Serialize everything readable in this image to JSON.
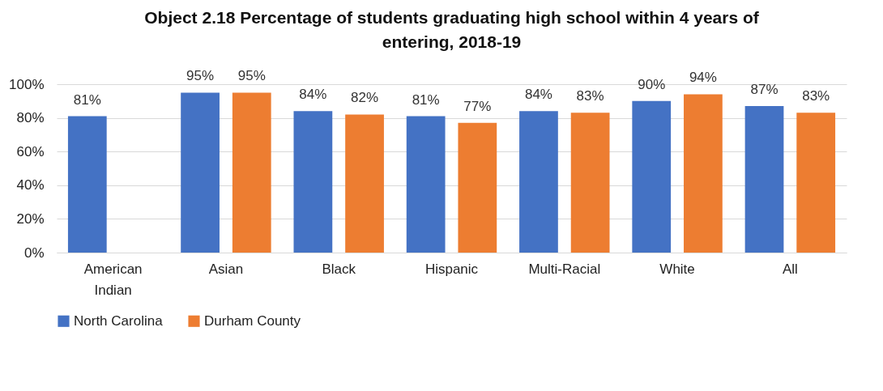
{
  "chart_data": {
    "type": "bar",
    "title": "Object 2.18 Percentage of students graduating high school within 4 years of entering, 2018-19",
    "categories": [
      "American Indian",
      "Asian",
      "Black",
      "Hispanic",
      "Multi-Racial",
      "White",
      "All"
    ],
    "series": [
      {
        "name": "North Carolina",
        "color": "#4472c4",
        "values": [
          81,
          95,
          84,
          81,
          84,
          90,
          87
        ],
        "value_labels": [
          "81%",
          "95%",
          "84%",
          "81%",
          "84%",
          "90%",
          "87%"
        ]
      },
      {
        "name": "Durham County",
        "color": "#ed7d31",
        "values": [
          null,
          95,
          82,
          77,
          83,
          94,
          83
        ],
        "value_labels": [
          null,
          "95%",
          "82%",
          "77%",
          "83%",
          "94%",
          "83%"
        ]
      }
    ],
    "ylim": [
      0,
      100
    ],
    "yticks": [
      {
        "value": 0,
        "label": "0%"
      },
      {
        "value": 20,
        "label": "20%"
      },
      {
        "value": 40,
        "label": "40%"
      },
      {
        "value": 60,
        "label": "60%"
      },
      {
        "value": 80,
        "label": "80%"
      },
      {
        "value": 100,
        "label": "100%"
      }
    ],
    "grid": "y",
    "legend": "bottom"
  }
}
